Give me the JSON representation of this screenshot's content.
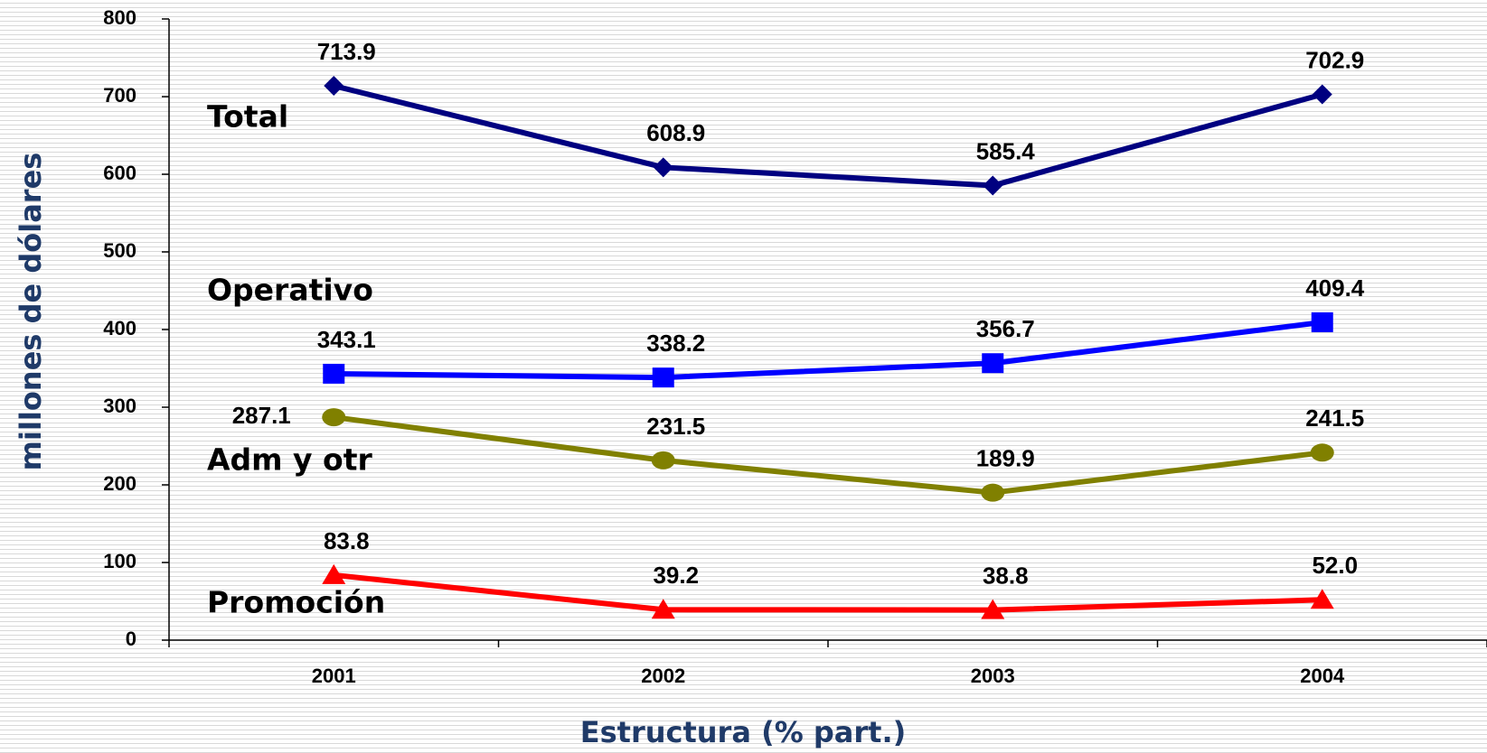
{
  "chart_data": {
    "type": "line",
    "xlabel": "Estructura (% part.)",
    "ylabel": "millones de dólares",
    "categories": [
      "2001",
      "2002",
      "2003",
      "2004"
    ],
    "series": [
      {
        "name": "Total",
        "color": "#000080",
        "marker": "diamond",
        "values": [
          713.9,
          608.9,
          585.4,
          702.9
        ],
        "value_labels": [
          "713.9",
          "608.9",
          "585.4",
          "702.9"
        ]
      },
      {
        "name": "Operativo",
        "color": "#0000ff",
        "marker": "square",
        "values": [
          343.1,
          338.2,
          356.7,
          409.4
        ],
        "value_labels": [
          "343.1",
          "338.2",
          "356.7",
          "409.4"
        ]
      },
      {
        "name": "Adm y otr",
        "color": "#808000",
        "marker": "circle",
        "values": [
          287.1,
          231.5,
          189.9,
          241.5
        ],
        "value_labels": [
          "287.1",
          "231.5",
          "189.9",
          "241.5"
        ]
      },
      {
        "name": "Promoción",
        "color": "#ff0000",
        "marker": "triangle",
        "values": [
          83.8,
          39.2,
          38.8,
          52.0
        ],
        "value_labels": [
          "83.8",
          "39.2",
          "38.8",
          "52.0"
        ]
      }
    ],
    "ylim": [
      0,
      800
    ],
    "yticks": [
      0,
      100,
      200,
      300,
      400,
      500,
      600,
      700,
      800
    ],
    "grid": false,
    "legend": "inline"
  }
}
